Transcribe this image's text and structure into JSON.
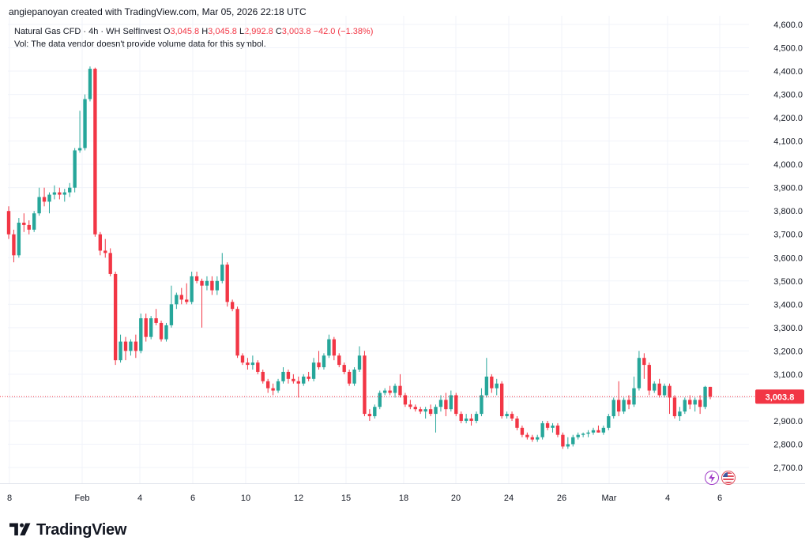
{
  "header": {
    "credit": "angiepanoyan created with TradingView.com, Mar 05, 2026 22:18 UTC",
    "symbol": "Natural Gas CFD · 4h · WH SelfInvest",
    "o_label": "O",
    "o_value": "3,045.8",
    "h_label": "H",
    "h_value": "3,045.8",
    "l_label": "L",
    "l_value": "2,992.8",
    "c_label": "C",
    "c_value": "3,003.8",
    "change": "−42.0 (−1.38%)",
    "vol_note": "Vol: The data vendor doesn't provide volume data for this symbol."
  },
  "brand": {
    "name": "TradingView"
  },
  "colors": {
    "up": "#26a69a",
    "down": "#f23645",
    "price_line": "#f23645",
    "text": "#131722"
  },
  "icons": [
    "tradingview-logo-icon",
    "flash-event-icon",
    "us-flag-icon"
  ],
  "chart_data": {
    "type": "candlestick",
    "title": "Natural Gas CFD · 4h · WH SelfInvest",
    "ylim": [
      2640,
      4620
    ],
    "y_ticks": [
      "2,700.0",
      "2,800.0",
      "2,900.0",
      "3,000.0",
      "3,100.0",
      "3,200.0",
      "3,300.0",
      "3,400.0",
      "3,500.0",
      "3,600.0",
      "3,700.0",
      "3,800.0",
      "3,900.0",
      "4,000.0",
      "4,100.0",
      "4,200.0",
      "4,300.0",
      "4,400.0",
      "4,500.0",
      "4,600.0"
    ],
    "y_tick_values": [
      2700,
      2800,
      2900,
      3000,
      3100,
      3200,
      3300,
      3400,
      3500,
      3600,
      3700,
      3800,
      3900,
      4000,
      4100,
      4200,
      4300,
      4400,
      4500,
      4600
    ],
    "x_ticks": [
      "8",
      "Feb",
      "4",
      "6",
      "10",
      "12",
      "15",
      "18",
      "20",
      "24",
      "26",
      "Mar",
      "4",
      "6"
    ],
    "last_price": 3003.8,
    "last_price_label": "3,003.8",
    "grid": true,
    "candles": [
      {
        "o": 3800,
        "h": 3820,
        "l": 3680,
        "c": 3700
      },
      {
        "o": 3700,
        "h": 3720,
        "l": 3580,
        "c": 3610
      },
      {
        "o": 3610,
        "h": 3770,
        "l": 3600,
        "c": 3750
      },
      {
        "o": 3750,
        "h": 3790,
        "l": 3710,
        "c": 3740
      },
      {
        "o": 3740,
        "h": 3760,
        "l": 3700,
        "c": 3720
      },
      {
        "o": 3720,
        "h": 3800,
        "l": 3710,
        "c": 3790
      },
      {
        "o": 3790,
        "h": 3900,
        "l": 3780,
        "c": 3860
      },
      {
        "o": 3860,
        "h": 3900,
        "l": 3820,
        "c": 3840
      },
      {
        "o": 3840,
        "h": 3880,
        "l": 3790,
        "c": 3870
      },
      {
        "o": 3870,
        "h": 3910,
        "l": 3850,
        "c": 3880
      },
      {
        "o": 3880,
        "h": 3900,
        "l": 3850,
        "c": 3870
      },
      {
        "o": 3870,
        "h": 3895,
        "l": 3840,
        "c": 3880
      },
      {
        "o": 3880,
        "h": 3920,
        "l": 3860,
        "c": 3900
      },
      {
        "o": 3900,
        "h": 4070,
        "l": 3880,
        "c": 4060
      },
      {
        "o": 4060,
        "h": 4230,
        "l": 4050,
        "c": 4070
      },
      {
        "o": 4070,
        "h": 4300,
        "l": 4060,
        "c": 4280
      },
      {
        "o": 4280,
        "h": 4420,
        "l": 4270,
        "c": 4410
      },
      {
        "o": 4410,
        "h": 4415,
        "l": 3690,
        "c": 3700
      },
      {
        "o": 3700,
        "h": 3710,
        "l": 3610,
        "c": 3630
      },
      {
        "o": 3630,
        "h": 3680,
        "l": 3600,
        "c": 3620
      },
      {
        "o": 3620,
        "h": 3640,
        "l": 3520,
        "c": 3530
      },
      {
        "o": 3530,
        "h": 3540,
        "l": 3140,
        "c": 3160
      },
      {
        "o": 3160,
        "h": 3270,
        "l": 3150,
        "c": 3240
      },
      {
        "o": 3240,
        "h": 3260,
        "l": 3160,
        "c": 3200
      },
      {
        "o": 3200,
        "h": 3250,
        "l": 3180,
        "c": 3240
      },
      {
        "o": 3240,
        "h": 3270,
        "l": 3170,
        "c": 3200
      },
      {
        "o": 3200,
        "h": 3360,
        "l": 3190,
        "c": 3340
      },
      {
        "o": 3340,
        "h": 3360,
        "l": 3240,
        "c": 3260
      },
      {
        "o": 3260,
        "h": 3350,
        "l": 3250,
        "c": 3340
      },
      {
        "o": 3340,
        "h": 3380,
        "l": 3310,
        "c": 3320
      },
      {
        "o": 3320,
        "h": 3330,
        "l": 3240,
        "c": 3250
      },
      {
        "o": 3250,
        "h": 3320,
        "l": 3240,
        "c": 3310
      },
      {
        "o": 3310,
        "h": 3480,
        "l": 3300,
        "c": 3400
      },
      {
        "o": 3400,
        "h": 3450,
        "l": 3380,
        "c": 3440
      },
      {
        "o": 3440,
        "h": 3470,
        "l": 3400,
        "c": 3420
      },
      {
        "o": 3420,
        "h": 3490,
        "l": 3400,
        "c": 3410
      },
      {
        "o": 3410,
        "h": 3540,
        "l": 3400,
        "c": 3520
      },
      {
        "o": 3520,
        "h": 3540,
        "l": 3490,
        "c": 3500
      },
      {
        "o": 3500,
        "h": 3510,
        "l": 3300,
        "c": 3480
      },
      {
        "o": 3480,
        "h": 3520,
        "l": 3460,
        "c": 3500
      },
      {
        "o": 3500,
        "h": 3520,
        "l": 3440,
        "c": 3460
      },
      {
        "o": 3460,
        "h": 3520,
        "l": 3440,
        "c": 3500
      },
      {
        "o": 3500,
        "h": 3620,
        "l": 3490,
        "c": 3570
      },
      {
        "o": 3570,
        "h": 3580,
        "l": 3390,
        "c": 3410
      },
      {
        "o": 3410,
        "h": 3420,
        "l": 3370,
        "c": 3380
      },
      {
        "o": 3380,
        "h": 3390,
        "l": 3170,
        "c": 3180
      },
      {
        "o": 3180,
        "h": 3190,
        "l": 3140,
        "c": 3150
      },
      {
        "o": 3150,
        "h": 3170,
        "l": 3120,
        "c": 3140
      },
      {
        "o": 3140,
        "h": 3180,
        "l": 3120,
        "c": 3150
      },
      {
        "o": 3150,
        "h": 3160,
        "l": 3100,
        "c": 3110
      },
      {
        "o": 3110,
        "h": 3120,
        "l": 3060,
        "c": 3070
      },
      {
        "o": 3070,
        "h": 3080,
        "l": 3020,
        "c": 3040
      },
      {
        "o": 3040,
        "h": 3060,
        "l": 3010,
        "c": 3030
      },
      {
        "o": 3030,
        "h": 3080,
        "l": 3020,
        "c": 3070
      },
      {
        "o": 3070,
        "h": 3130,
        "l": 3060,
        "c": 3110
      },
      {
        "o": 3110,
        "h": 3120,
        "l": 3060,
        "c": 3080
      },
      {
        "o": 3080,
        "h": 3100,
        "l": 3060,
        "c": 3070
      },
      {
        "o": 3070,
        "h": 3090,
        "l": 3000,
        "c": 3060
      },
      {
        "o": 3060,
        "h": 3100,
        "l": 3050,
        "c": 3090
      },
      {
        "o": 3090,
        "h": 3110,
        "l": 3070,
        "c": 3080
      },
      {
        "o": 3080,
        "h": 3170,
        "l": 3070,
        "c": 3150
      },
      {
        "o": 3150,
        "h": 3200,
        "l": 3120,
        "c": 3130
      },
      {
        "o": 3130,
        "h": 3190,
        "l": 3120,
        "c": 3180
      },
      {
        "o": 3180,
        "h": 3270,
        "l": 3170,
        "c": 3250
      },
      {
        "o": 3250,
        "h": 3260,
        "l": 3160,
        "c": 3180
      },
      {
        "o": 3180,
        "h": 3190,
        "l": 3130,
        "c": 3140
      },
      {
        "o": 3140,
        "h": 3150,
        "l": 3100,
        "c": 3110
      },
      {
        "o": 3110,
        "h": 3120,
        "l": 3050,
        "c": 3060
      },
      {
        "o": 3060,
        "h": 3130,
        "l": 3050,
        "c": 3120
      },
      {
        "o": 3120,
        "h": 3220,
        "l": 3110,
        "c": 3180
      },
      {
        "o": 3180,
        "h": 3200,
        "l": 2920,
        "c": 2930
      },
      {
        "o": 2930,
        "h": 2950,
        "l": 2900,
        "c": 2920
      },
      {
        "o": 2920,
        "h": 2970,
        "l": 2910,
        "c": 2960
      },
      {
        "o": 2960,
        "h": 3030,
        "l": 2950,
        "c": 3020
      },
      {
        "o": 3020,
        "h": 3040,
        "l": 3010,
        "c": 3030
      },
      {
        "o": 3030,
        "h": 3050,
        "l": 3010,
        "c": 3020
      },
      {
        "o": 3020,
        "h": 3060,
        "l": 3000,
        "c": 3050
      },
      {
        "o": 3050,
        "h": 3100,
        "l": 3000,
        "c": 3010
      },
      {
        "o": 3010,
        "h": 3020,
        "l": 2960,
        "c": 2970
      },
      {
        "o": 2970,
        "h": 2990,
        "l": 2950,
        "c": 2960
      },
      {
        "o": 2960,
        "h": 2970,
        "l": 2940,
        "c": 2950
      },
      {
        "o": 2950,
        "h": 2960,
        "l": 2930,
        "c": 2940
      },
      {
        "o": 2940,
        "h": 2960,
        "l": 2910,
        "c": 2950
      },
      {
        "o": 2950,
        "h": 2970,
        "l": 2920,
        "c": 2930
      },
      {
        "o": 2930,
        "h": 2970,
        "l": 2850,
        "c": 2960
      },
      {
        "o": 2960,
        "h": 3010,
        "l": 2940,
        "c": 2990
      },
      {
        "o": 2990,
        "h": 3020,
        "l": 2920,
        "c": 2950
      },
      {
        "o": 2950,
        "h": 3030,
        "l": 2940,
        "c": 3010
      },
      {
        "o": 3010,
        "h": 3020,
        "l": 2920,
        "c": 2930
      },
      {
        "o": 2930,
        "h": 2940,
        "l": 2890,
        "c": 2900
      },
      {
        "o": 2900,
        "h": 2930,
        "l": 2890,
        "c": 2910
      },
      {
        "o": 2910,
        "h": 2930,
        "l": 2880,
        "c": 2900
      },
      {
        "o": 2900,
        "h": 2940,
        "l": 2890,
        "c": 2930
      },
      {
        "o": 2930,
        "h": 3040,
        "l": 2920,
        "c": 3010
      },
      {
        "o": 3010,
        "h": 3170,
        "l": 3000,
        "c": 3090
      },
      {
        "o": 3090,
        "h": 3100,
        "l": 3020,
        "c": 3040
      },
      {
        "o": 3040,
        "h": 3080,
        "l": 3010,
        "c": 3060
      },
      {
        "o": 3060,
        "h": 3070,
        "l": 2910,
        "c": 2920
      },
      {
        "o": 2920,
        "h": 2940,
        "l": 2910,
        "c": 2930
      },
      {
        "o": 2930,
        "h": 2940,
        "l": 2900,
        "c": 2910
      },
      {
        "o": 2910,
        "h": 2920,
        "l": 2860,
        "c": 2870
      },
      {
        "o": 2870,
        "h": 2880,
        "l": 2830,
        "c": 2840
      },
      {
        "o": 2840,
        "h": 2850,
        "l": 2820,
        "c": 2830
      },
      {
        "o": 2830,
        "h": 2840,
        "l": 2810,
        "c": 2820
      },
      {
        "o": 2820,
        "h": 2840,
        "l": 2810,
        "c": 2830
      },
      {
        "o": 2830,
        "h": 2900,
        "l": 2820,
        "c": 2890
      },
      {
        "o": 2890,
        "h": 2900,
        "l": 2860,
        "c": 2870
      },
      {
        "o": 2870,
        "h": 2890,
        "l": 2850,
        "c": 2880
      },
      {
        "o": 2880,
        "h": 2890,
        "l": 2830,
        "c": 2840
      },
      {
        "o": 2840,
        "h": 2850,
        "l": 2780,
        "c": 2790
      },
      {
        "o": 2790,
        "h": 2830,
        "l": 2780,
        "c": 2800
      },
      {
        "o": 2800,
        "h": 2840,
        "l": 2790,
        "c": 2830
      },
      {
        "o": 2830,
        "h": 2850,
        "l": 2820,
        "c": 2840
      },
      {
        "o": 2840,
        "h": 2850,
        "l": 2830,
        "c": 2845
      },
      {
        "o": 2845,
        "h": 2860,
        "l": 2830,
        "c": 2850
      },
      {
        "o": 2850,
        "h": 2870,
        "l": 2840,
        "c": 2860
      },
      {
        "o": 2860,
        "h": 2880,
        "l": 2850,
        "c": 2850
      },
      {
        "o": 2850,
        "h": 2880,
        "l": 2840,
        "c": 2870
      },
      {
        "o": 2870,
        "h": 2930,
        "l": 2860,
        "c": 2920
      },
      {
        "o": 2920,
        "h": 3000,
        "l": 2910,
        "c": 2990
      },
      {
        "o": 2990,
        "h": 3070,
        "l": 2920,
        "c": 2940
      },
      {
        "o": 2940,
        "h": 3000,
        "l": 2930,
        "c": 2990
      },
      {
        "o": 2990,
        "h": 3010,
        "l": 2950,
        "c": 2970
      },
      {
        "o": 2970,
        "h": 3090,
        "l": 2960,
        "c": 3040
      },
      {
        "o": 3040,
        "h": 3200,
        "l": 3030,
        "c": 3170
      },
      {
        "o": 3170,
        "h": 3190,
        "l": 3080,
        "c": 3140
      },
      {
        "o": 3140,
        "h": 3150,
        "l": 3010,
        "c": 3030
      },
      {
        "o": 3030,
        "h": 3070,
        "l": 3020,
        "c": 3060
      },
      {
        "o": 3060,
        "h": 3080,
        "l": 3000,
        "c": 3010
      },
      {
        "o": 3010,
        "h": 3060,
        "l": 3000,
        "c": 3050
      },
      {
        "o": 3050,
        "h": 3060,
        "l": 2930,
        "c": 3000
      },
      {
        "o": 3000,
        "h": 3010,
        "l": 2910,
        "c": 2920
      },
      {
        "o": 2920,
        "h": 2960,
        "l": 2900,
        "c": 2940
      },
      {
        "o": 2940,
        "h": 3000,
        "l": 2930,
        "c": 2990
      },
      {
        "o": 2990,
        "h": 3010,
        "l": 2950,
        "c": 2970
      },
      {
        "o": 2970,
        "h": 3000,
        "l": 2940,
        "c": 2990
      },
      {
        "o": 2990,
        "h": 3010,
        "l": 2930,
        "c": 2960
      },
      {
        "o": 2960,
        "h": 3050,
        "l": 2950,
        "c": 3046
      },
      {
        "o": 3045.8,
        "h": 3045.8,
        "l": 2992.8,
        "c": 3003.8
      }
    ]
  }
}
